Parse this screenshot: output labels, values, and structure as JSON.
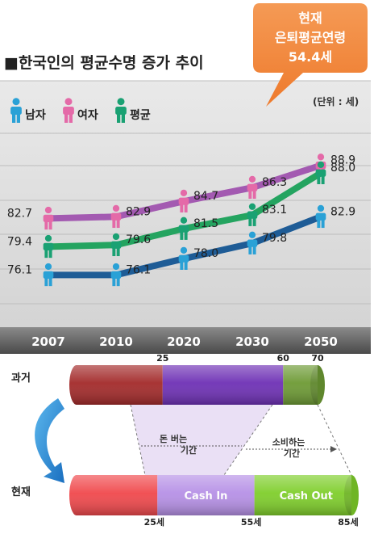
{
  "chart_data": [
    {
      "type": "line",
      "title": "■한국인의 평균수명 증가 추이",
      "unit_label": "(단위 : 세)",
      "callout": [
        "현재",
        "은퇴평균연령",
        "54.4세"
      ],
      "categories": [
        "2007",
        "2010",
        "2020",
        "2030",
        "2050"
      ],
      "ylim": [
        70,
        95
      ],
      "legend_placement": "top-left",
      "series": [
        {
          "name": "여자",
          "icon": "person-female-icon",
          "color": "#a35ab1",
          "marker": "#e46aa8",
          "values": [
            82.7,
            82.9,
            84.7,
            86.3,
            88.9
          ],
          "labels": [
            "82.7",
            "82.9",
            "84.7",
            "86.3",
            "88.9"
          ]
        },
        {
          "name": "평균",
          "icon": "person-average-icon",
          "color": "#24a460",
          "marker": "#1aa173",
          "values": [
            79.4,
            79.6,
            81.5,
            83.1,
            88.0
          ],
          "labels": [
            "79.4",
            "79.6",
            "81.5",
            "83.1",
            "88.0"
          ]
        },
        {
          "name": "남자",
          "icon": "person-male-icon",
          "color": "#1e5c96",
          "marker": "#2aa1d6",
          "values": [
            76.1,
            76.1,
            78.0,
            79.8,
            82.9
          ],
          "labels": [
            "76.1",
            "76.1",
            "78.0",
            "79.8",
            "82.9"
          ]
        }
      ]
    },
    {
      "type": "bar",
      "orientation": "horizontal-stacked",
      "rows": [
        {
          "label": "과거",
          "ticks": [
            "25",
            "60",
            "70"
          ],
          "segments": [
            {
              "from": 0,
              "to": 25,
              "color": "#a32a2a"
            },
            {
              "from": 25,
              "to": 60,
              "color": "#6e30b5"
            },
            {
              "from": 60,
              "to": 70,
              "color": "#6d9a34"
            }
          ]
        },
        {
          "label": "현재",
          "ticks": [
            "25세",
            "55세",
            "85세"
          ],
          "segments": [
            {
              "from": 0,
              "to": 25,
              "color": "#f0484c"
            },
            {
              "from": 25,
              "to": 55,
              "color": "#b690e6",
              "text": "Cash In"
            },
            {
              "from": 55,
              "to": 85,
              "color": "#7fce2b",
              "text": "Cash  Out"
            }
          ]
        }
      ],
      "annotations": {
        "earning": [
          "돈 버는",
          "기간"
        ],
        "spending": [
          "소비하는",
          "기간"
        ]
      }
    }
  ]
}
